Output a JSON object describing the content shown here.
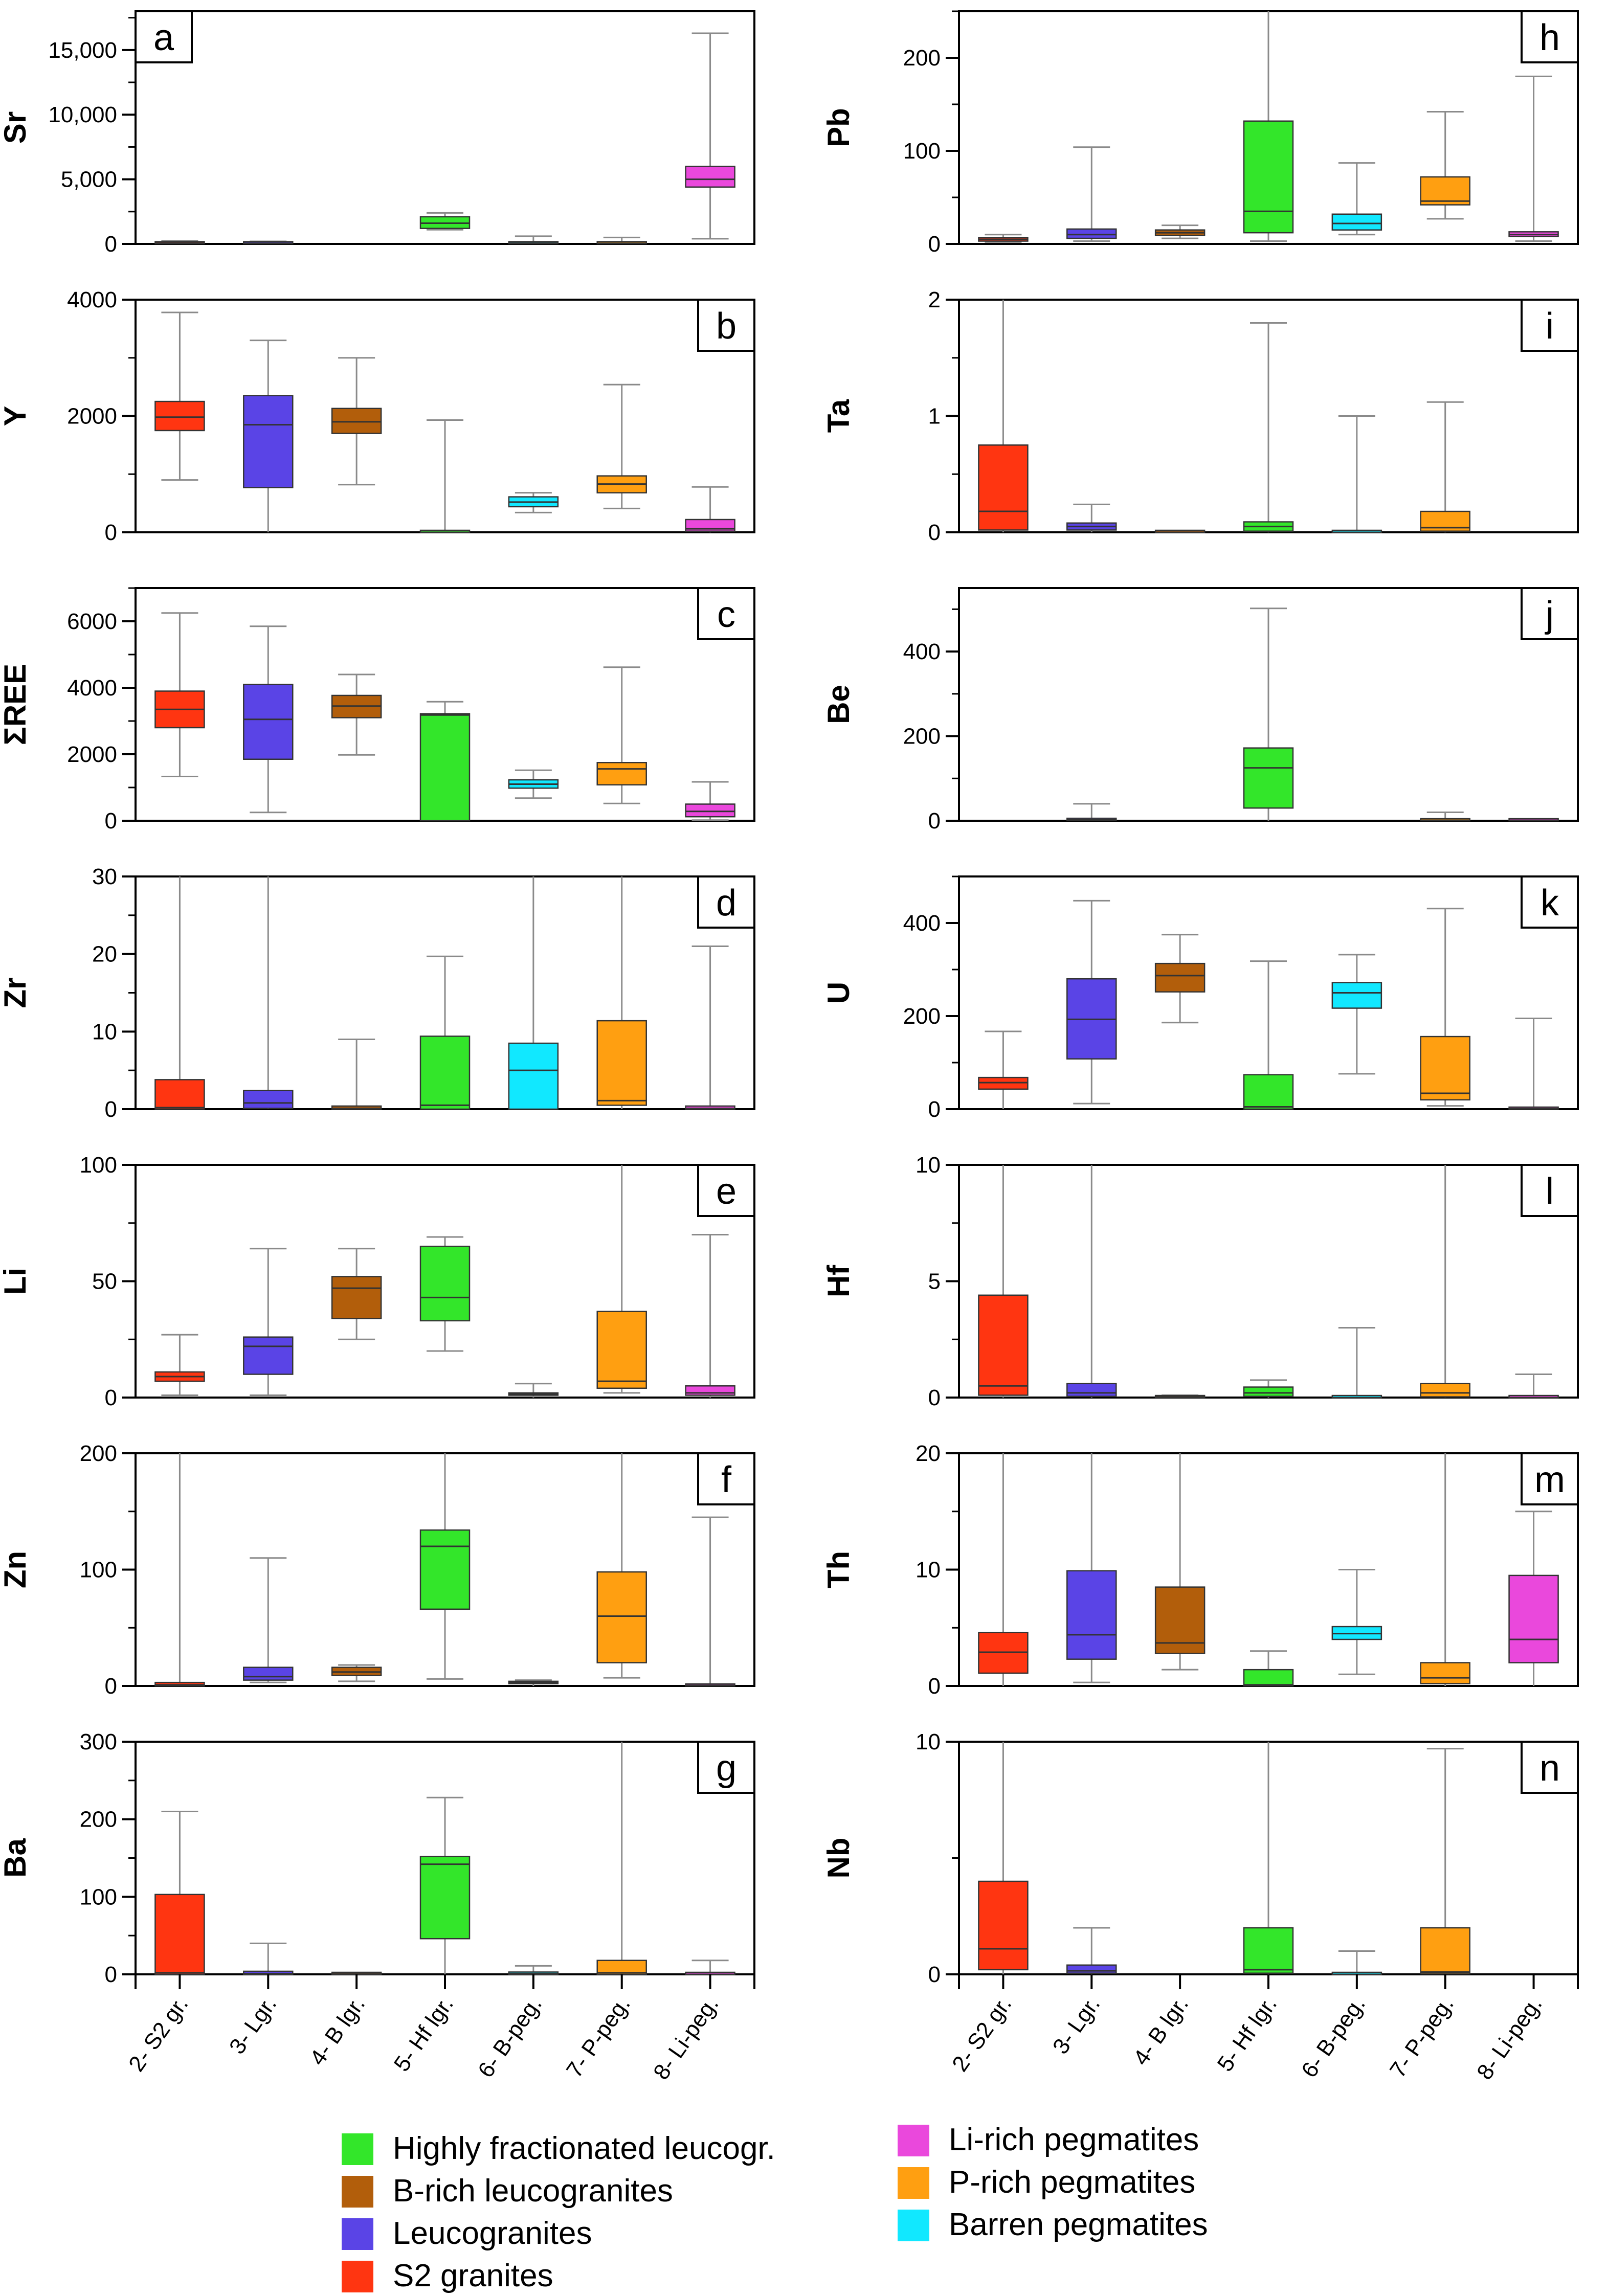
{
  "colors": {
    "S2 granites": "#ff3511",
    "Leucogranites": "#5a44e6",
    "B-rich leucogranites": "#b25e0b",
    "Highly fractionated leucogr.": "#33e62a",
    "Barren pegmatites": "#11e8ff",
    "P-rich pegmatites": "#ff9f11",
    "Li-rich pegmatites": "#ea48dc"
  },
  "categories": [
    "2- S2 gr.",
    "3- Lgr.",
    "4- B lgr.",
    "5- Hf lgr.",
    "6- B-peg.",
    "7- P-peg.",
    "8- Li-peg."
  ],
  "legend": {
    "left": [
      {
        "label": "Highly fractionated leucogr.",
        "group": "Highly fractionated leucogr."
      },
      {
        "label": "B-rich leucogranites",
        "group": "B-rich leucogranites"
      },
      {
        "label": "Leucogranites",
        "group": "Leucogranites"
      },
      {
        "label": "S2 granites",
        "group": "S2 granites"
      }
    ],
    "right": [
      {
        "label": "Li-rich pegmatites",
        "group": "Li-rich pegmatites"
      },
      {
        "label": "P-rich pegmatites",
        "group": "P-rich pegmatites"
      },
      {
        "label": "Barren pegmatites",
        "group": "Barren pegmatites"
      }
    ]
  },
  "chart_data": [
    {
      "type": "box",
      "panel": "a",
      "ylabel": "Sr",
      "ylim": [
        0,
        18000
      ],
      "yticks": [
        0,
        5000,
        10000,
        15000
      ],
      "yticklabels": [
        "0",
        "5,000",
        "10,000",
        "15,000"
      ],
      "minor_step": 2500,
      "corner": "left",
      "boxes": [
        {
          "min": 0,
          "q1": 20,
          "median": 60,
          "q3": 120,
          "max": 250
        },
        {
          "min": 0,
          "q1": 20,
          "median": 50,
          "q3": 100,
          "max": 200
        },
        null,
        {
          "min": 1100,
          "q1": 1200,
          "median": 1600,
          "q3": 2100,
          "max": 2400
        },
        {
          "min": 0,
          "q1": 20,
          "median": 60,
          "q3": 150,
          "max": 600
        },
        {
          "min": 0,
          "q1": 20,
          "median": 50,
          "q3": 100,
          "max": 500
        },
        {
          "min": 400,
          "q1": 4400,
          "median": 5000,
          "q3": 6000,
          "max": 16300
        }
      ]
    },
    {
      "type": "box",
      "panel": "b",
      "ylabel": "Y",
      "ylim": [
        0,
        4000
      ],
      "yticks": [
        0,
        2000,
        4000
      ],
      "yticklabels": [
        "0",
        "2000",
        "4000"
      ],
      "minor_step": 1000,
      "corner": "right",
      "boxes": [
        {
          "min": 900,
          "q1": 1750,
          "median": 1980,
          "q3": 2250,
          "max": 3780
        },
        {
          "min": 0,
          "q1": 770,
          "median": 1850,
          "q3": 2350,
          "max": 3300
        },
        {
          "min": 820,
          "q1": 1700,
          "median": 1900,
          "q3": 2130,
          "max": 3000
        },
        {
          "min": 0,
          "q1": 0,
          "median": 0,
          "q3": 0,
          "max": 1930
        },
        {
          "min": 340,
          "q1": 440,
          "median": 520,
          "q3": 610,
          "max": 680
        },
        {
          "min": 410,
          "q1": 680,
          "median": 830,
          "q3": 970,
          "max": 2540
        },
        {
          "min": 0,
          "q1": 20,
          "median": 60,
          "q3": 220,
          "max": 780
        }
      ]
    },
    {
      "type": "box",
      "panel": "c",
      "ylabel": "ΣREE",
      "ylim": [
        0,
        7000
      ],
      "yticks": [
        0,
        2000,
        4000,
        6000
      ],
      "yticklabels": [
        "0",
        "2000",
        "4000",
        "6000"
      ],
      "minor_step": 1000,
      "corner": "right",
      "boxes": [
        {
          "min": 1330,
          "q1": 2800,
          "median": 3350,
          "q3": 3900,
          "max": 6250
        },
        {
          "min": 250,
          "q1": 1850,
          "median": 3050,
          "q3": 4100,
          "max": 5850
        },
        {
          "min": 1980,
          "q1": 3100,
          "median": 3450,
          "q3": 3770,
          "max": 4400
        },
        {
          "min": 0,
          "q1": 0,
          "median": 3180,
          "q3": 3220,
          "max": 3580
        },
        {
          "min": 680,
          "q1": 980,
          "median": 1100,
          "q3": 1230,
          "max": 1520
        },
        {
          "min": 520,
          "q1": 1080,
          "median": 1560,
          "q3": 1750,
          "max": 4620
        },
        {
          "min": 20,
          "q1": 120,
          "median": 280,
          "q3": 500,
          "max": 1170
        }
      ]
    },
    {
      "type": "box",
      "panel": "d",
      "ylabel": "Zr",
      "ylim": [
        0,
        30
      ],
      "yticks": [
        0,
        10,
        20,
        30
      ],
      "yticklabels": [
        "0",
        "10",
        "20",
        "30"
      ],
      "minor_step": 5,
      "corner": "right",
      "boxes": [
        {
          "min": 0,
          "q1": 0,
          "median": 0.2,
          "q3": 3.8,
          "max": 30
        },
        {
          "min": 0,
          "q1": 0.1,
          "median": 0.8,
          "q3": 2.4,
          "max": 30
        },
        {
          "min": 0,
          "q1": 0,
          "median": 0.1,
          "q3": 0.4,
          "max": 9
        },
        {
          "min": 0,
          "q1": 0,
          "median": 0.5,
          "q3": 9.4,
          "max": 19.7
        },
        {
          "min": 0,
          "q1": 0,
          "median": 5,
          "q3": 8.5,
          "max": 30
        },
        {
          "min": 0,
          "q1": 0.5,
          "median": 1.1,
          "q3": 11.4,
          "max": 30
        },
        {
          "min": 0,
          "q1": 0,
          "median": 0.1,
          "q3": 0.4,
          "max": 21
        }
      ]
    },
    {
      "type": "box",
      "panel": "e",
      "ylabel": "Li",
      "ylim": [
        0,
        100
      ],
      "yticks": [
        0,
        50,
        100
      ],
      "yticklabels": [
        "0",
        "50",
        "100"
      ],
      "minor_step": 25,
      "corner": "right",
      "boxes": [
        {
          "min": 1,
          "q1": 7,
          "median": 9,
          "q3": 11,
          "max": 27
        },
        {
          "min": 1,
          "q1": 10,
          "median": 22,
          "q3": 26,
          "max": 64
        },
        {
          "min": 25,
          "q1": 34,
          "median": 47,
          "q3": 52,
          "max": 64
        },
        {
          "min": 20,
          "q1": 33,
          "median": 43,
          "q3": 65,
          "max": 69
        },
        {
          "min": 0,
          "q1": 1,
          "median": 1.5,
          "q3": 2,
          "max": 6
        },
        {
          "min": 2,
          "q1": 4,
          "median": 7,
          "q3": 37,
          "max": 100
        },
        {
          "min": 0,
          "q1": 1,
          "median": 2,
          "q3": 5,
          "max": 70
        }
      ]
    },
    {
      "type": "box",
      "panel": "f",
      "ylabel": "Zn",
      "ylim": [
        0,
        200
      ],
      "yticks": [
        0,
        100,
        200
      ],
      "yticklabels": [
        "0",
        "100",
        "200"
      ],
      "minor_step": 50,
      "corner": "right",
      "boxes": [
        {
          "min": 0,
          "q1": 0,
          "median": 1,
          "q3": 3,
          "max": 200
        },
        {
          "min": 3,
          "q1": 5,
          "median": 8,
          "q3": 16,
          "max": 110
        },
        {
          "min": 4,
          "q1": 9,
          "median": 12,
          "q3": 16,
          "max": 18
        },
        {
          "min": 6,
          "q1": 66,
          "median": 120,
          "q3": 134,
          "max": 200
        },
        {
          "min": 0,
          "q1": 2,
          "median": 3,
          "q3": 4,
          "max": 5
        },
        {
          "min": 7,
          "q1": 20,
          "median": 60,
          "q3": 98,
          "max": 200
        },
        {
          "min": 0,
          "q1": 0,
          "median": 0.5,
          "q3": 1,
          "max": 145
        }
      ]
    },
    {
      "type": "box",
      "panel": "g",
      "ylabel": "Ba",
      "ylim": [
        0,
        300
      ],
      "yticks": [
        0,
        100,
        200,
        300
      ],
      "yticklabels": [
        "0",
        "100",
        "200",
        "300"
      ],
      "minor_step": 50,
      "corner": "right",
      "boxes": [
        {
          "min": 0,
          "q1": 0,
          "median": 2,
          "q3": 103,
          "max": 210
        },
        {
          "min": 0,
          "q1": 0,
          "median": 1,
          "q3": 4,
          "max": 40
        },
        {
          "min": 0,
          "q1": 0,
          "median": 0.5,
          "q3": 1,
          "max": 1
        },
        {
          "min": 0,
          "q1": 46,
          "median": 142,
          "q3": 152,
          "max": 228
        },
        {
          "min": 0,
          "q1": 0,
          "median": 1,
          "q3": 3,
          "max": 11
        },
        {
          "min": 0,
          "q1": 0,
          "median": 2,
          "q3": 18,
          "max": 300
        },
        {
          "min": 0,
          "q1": 0,
          "median": 0,
          "q3": 0,
          "max": 18
        }
      ]
    },
    {
      "type": "box",
      "panel": "h",
      "ylabel": "Pb",
      "ylim": [
        0,
        250
      ],
      "yticks": [
        0,
        100,
        200
      ],
      "yticklabels": [
        "0",
        "100",
        "200"
      ],
      "minor_step": 50,
      "corner": "right",
      "boxes": [
        {
          "min": 2,
          "q1": 3,
          "median": 5,
          "q3": 7,
          "max": 10
        },
        {
          "min": 3,
          "q1": 6,
          "median": 10,
          "q3": 16,
          "max": 104
        },
        {
          "min": 6,
          "q1": 9,
          "median": 12,
          "q3": 15,
          "max": 20
        },
        {
          "min": 3,
          "q1": 12,
          "median": 35,
          "q3": 132,
          "max": 250
        },
        {
          "min": 10,
          "q1": 15,
          "median": 22,
          "q3": 32,
          "max": 87
        },
        {
          "min": 27,
          "q1": 42,
          "median": 46,
          "q3": 72,
          "max": 142
        },
        {
          "min": 3,
          "q1": 8,
          "median": 10,
          "q3": 13,
          "max": 180
        }
      ]
    },
    {
      "type": "box",
      "panel": "i",
      "ylabel": "Ta",
      "ylim": [
        0,
        2
      ],
      "yticks": [
        0,
        1,
        2
      ],
      "yticklabels": [
        "0",
        "1",
        "2"
      ],
      "minor_step": 0.5,
      "corner": "right",
      "boxes": [
        {
          "min": 0,
          "q1": 0.02,
          "median": 0.18,
          "q3": 0.75,
          "max": 2
        },
        {
          "min": 0,
          "q1": 0.02,
          "median": 0.05,
          "q3": 0.08,
          "max": 0.24
        },
        {
          "min": 0,
          "q1": 0,
          "median": 0,
          "q3": 0.01,
          "max": 0.01
        },
        {
          "min": 0,
          "q1": 0.01,
          "median": 0.05,
          "q3": 0.09,
          "max": 1.8
        },
        {
          "min": 0,
          "q1": 0,
          "median": 0,
          "q3": 0,
          "max": 1.0
        },
        {
          "min": 0,
          "q1": 0.01,
          "median": 0.04,
          "q3": 0.18,
          "max": 1.12
        },
        null
      ]
    },
    {
      "type": "box",
      "panel": "j",
      "ylabel": "Be",
      "ylim": [
        0,
        550
      ],
      "yticks": [
        0,
        200,
        400
      ],
      "yticklabels": [
        "0",
        "200",
        "400"
      ],
      "minor_step": 100,
      "corner": "right",
      "boxes": [
        null,
        {
          "min": 0,
          "q1": 1,
          "median": 2,
          "q3": 4,
          "max": 40
        },
        null,
        {
          "min": 0,
          "q1": 30,
          "median": 125,
          "q3": 172,
          "max": 502
        },
        null,
        {
          "min": 0,
          "q1": 0,
          "median": 1,
          "q3": 2,
          "max": 20
        },
        {
          "min": 0,
          "q1": 0,
          "median": 1,
          "q3": 2,
          "max": 3
        }
      ]
    },
    {
      "type": "box",
      "panel": "k",
      "ylabel": "U",
      "ylim": [
        0,
        500
      ],
      "yticks": [
        0,
        200,
        400
      ],
      "yticklabels": [
        "0",
        "200",
        "400"
      ],
      "minor_step": 100,
      "corner": "right",
      "boxes": [
        {
          "min": 0,
          "q1": 43,
          "median": 57,
          "q3": 68,
          "max": 167
        },
        {
          "min": 12,
          "q1": 108,
          "median": 193,
          "q3": 280,
          "max": 448
        },
        {
          "min": 186,
          "q1": 252,
          "median": 287,
          "q3": 313,
          "max": 375
        },
        {
          "min": 0,
          "q1": 0,
          "median": 5,
          "q3": 74,
          "max": 318
        },
        {
          "min": 76,
          "q1": 217,
          "median": 250,
          "q3": 272,
          "max": 332
        },
        {
          "min": 7,
          "q1": 20,
          "median": 34,
          "q3": 156,
          "max": 431
        },
        {
          "min": 0,
          "q1": 0,
          "median": 1,
          "q3": 3,
          "max": 195
        }
      ]
    },
    {
      "type": "box",
      "panel": "l",
      "ylabel": "Hf",
      "ylim": [
        0,
        10
      ],
      "yticks": [
        0,
        5,
        10
      ],
      "yticklabels": [
        "0",
        "5",
        "10"
      ],
      "minor_step": 2.5,
      "corner": "right",
      "boxes": [
        {
          "min": 0,
          "q1": 0.1,
          "median": 0.5,
          "q3": 4.4,
          "max": 10
        },
        {
          "min": 0,
          "q1": 0.05,
          "median": 0.2,
          "q3": 0.6,
          "max": 10
        },
        {
          "min": 0,
          "q1": 0,
          "median": 0.03,
          "q3": 0.08,
          "max": 0.1
        },
        {
          "min": 0,
          "q1": 0.05,
          "median": 0.2,
          "q3": 0.45,
          "max": 0.75
        },
        {
          "min": 0,
          "q1": 0,
          "median": 0,
          "q3": 0,
          "max": 3.0
        },
        {
          "min": 0,
          "q1": 0.03,
          "median": 0.2,
          "q3": 0.6,
          "max": 10
        },
        {
          "min": 0,
          "q1": 0,
          "median": 0,
          "q3": 0,
          "max": 1.0
        }
      ]
    },
    {
      "type": "box",
      "panel": "m",
      "ylabel": "Th",
      "ylim": [
        0,
        20
      ],
      "yticks": [
        0,
        10,
        20
      ],
      "yticklabels": [
        "0",
        "10",
        "20"
      ],
      "minor_step": 5,
      "corner": "right",
      "boxes": [
        {
          "min": 0,
          "q1": 1.1,
          "median": 2.9,
          "q3": 4.6,
          "max": 20
        },
        {
          "min": 0.3,
          "q1": 2.3,
          "median": 4.4,
          "q3": 9.9,
          "max": 20
        },
        {
          "min": 1.4,
          "q1": 2.8,
          "median": 3.7,
          "q3": 8.5,
          "max": 20
        },
        {
          "min": 0,
          "q1": 0,
          "median": 0.1,
          "q3": 1.4,
          "max": 3.0
        },
        {
          "min": 1.0,
          "q1": 4.0,
          "median": 4.5,
          "q3": 5.1,
          "max": 10
        },
        {
          "min": 0,
          "q1": 0.2,
          "median": 0.7,
          "q3": 2.0,
          "max": 20
        },
        {
          "min": 0,
          "q1": 2.0,
          "median": 4.0,
          "q3": 9.5,
          "max": 15
        }
      ]
    },
    {
      "type": "box",
      "panel": "n",
      "ylabel": "Nb",
      "ylim": [
        0,
        10
      ],
      "yticks": [
        0,
        10
      ],
      "yticklabels": [
        "0",
        "10"
      ],
      "minor_step": 5,
      "corner": "right",
      "boxes": [
        {
          "min": 0,
          "q1": 0.2,
          "median": 1.1,
          "q3": 4.0,
          "max": 10
        },
        {
          "min": 0,
          "q1": 0.05,
          "median": 0.15,
          "q3": 0.4,
          "max": 2.0
        },
        null,
        {
          "min": 0,
          "q1": 0.05,
          "median": 0.2,
          "q3": 2.0,
          "max": 10
        },
        {
          "min": 0,
          "q1": 0,
          "median": 0,
          "q3": 0,
          "max": 1.0
        },
        {
          "min": 0,
          "q1": 0.02,
          "median": 0.1,
          "q3": 2.0,
          "max": 9.7
        },
        null
      ]
    }
  ]
}
